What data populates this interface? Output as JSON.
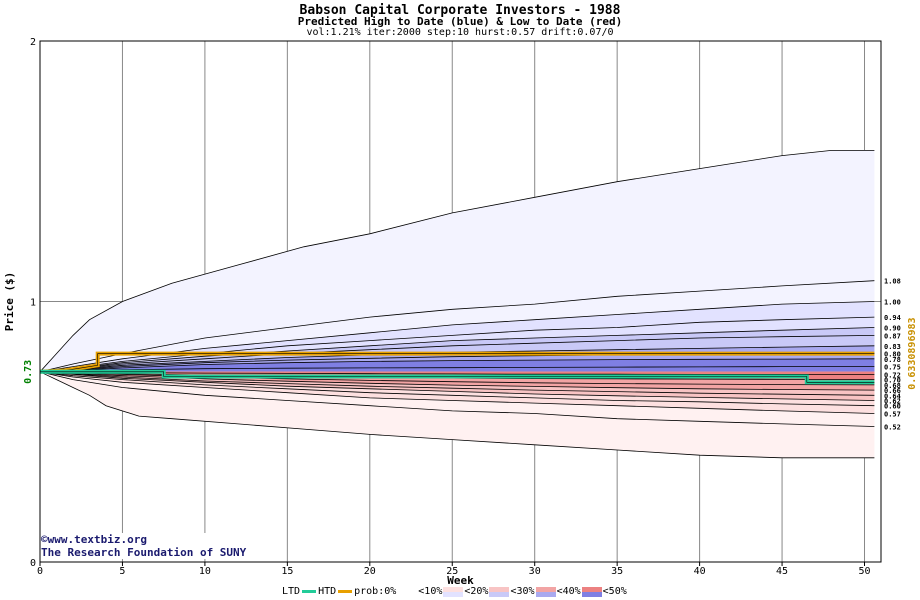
{
  "title": "Babson Capital Corporate Investors - 1988",
  "subtitle": "Predicted High to Date (blue) &  Low to Date (red)",
  "params": "vol:1.21% iter:2000 step:10 hurst:0.57 drift:0.07/0",
  "credit": {
    "site": "www.textbiz.org",
    "org": "The Research Foundation of SUNY"
  },
  "legend": {
    "ltd": "LTD",
    "htd": "HTD",
    "prob": "prob:0%",
    "bands": [
      "<10%",
      "<20%",
      "<30%",
      "<40%",
      "<50%"
    ]
  },
  "colors": {
    "ltd_line": "#22cc99",
    "htd_line": "#e8a000",
    "high_bands": [
      "#f3f3ff",
      "#e2e2ff",
      "#c9c9f7",
      "#a9a9ef",
      "#7f7fe3"
    ],
    "low_bands": [
      "#fff1f1",
      "#fde0e0",
      "#f8c4c4",
      "#f2a4a4",
      "#ec8181"
    ],
    "start_label": "#008000",
    "side_label": "#c89000"
  },
  "chart_data": {
    "type": "area",
    "xlabel": "Week",
    "ylabel": "Price ($)",
    "xlim": [
      0,
      51
    ],
    "ylim": [
      0,
      2
    ],
    "x_ticks": [
      0,
      5,
      10,
      15,
      20,
      25,
      30,
      35,
      40,
      45,
      50
    ],
    "y_ticks": [
      0,
      1,
      2
    ],
    "grid": true,
    "start_price": 0.73,
    "start_label": "0.73",
    "side_label": "0.6330896983",
    "high_bands": [
      {
        "name": "p99",
        "label": "",
        "x": [
          0,
          1,
          2,
          3,
          5,
          8,
          12,
          16,
          20,
          25,
          30,
          35,
          40,
          45,
          48,
          50.6
        ],
        "y": [
          0.73,
          0.8,
          0.87,
          0.93,
          1.0,
          1.07,
          1.14,
          1.21,
          1.26,
          1.34,
          1.4,
          1.46,
          1.51,
          1.56,
          1.58,
          1.58
        ]
      },
      {
        "name": "p90",
        "label": "1.08",
        "x": [
          0,
          2,
          5,
          10,
          15,
          20,
          25,
          30,
          35,
          40,
          45,
          50.6
        ],
        "y": [
          0.73,
          0.76,
          0.8,
          0.86,
          0.9,
          0.94,
          0.97,
          0.99,
          1.02,
          1.04,
          1.06,
          1.08
        ]
      },
      {
        "name": "p80",
        "label": "1.00",
        "x": [
          0,
          2,
          5,
          10,
          15,
          20,
          25,
          30,
          35,
          40,
          45,
          50.6
        ],
        "y": [
          0.73,
          0.75,
          0.78,
          0.82,
          0.85,
          0.88,
          0.91,
          0.93,
          0.95,
          0.97,
          0.99,
          1.0
        ]
      },
      {
        "name": "p70",
        "label": "0.94",
        "x": [
          0,
          2,
          5,
          10,
          15,
          20,
          25,
          30,
          35,
          40,
          45,
          50.6
        ],
        "y": [
          0.73,
          0.745,
          0.77,
          0.8,
          0.83,
          0.85,
          0.87,
          0.89,
          0.9,
          0.92,
          0.93,
          0.94
        ]
      },
      {
        "name": "p60",
        "label": "0.90",
        "x": [
          0,
          2,
          5,
          10,
          15,
          20,
          25,
          30,
          35,
          40,
          45,
          50.6
        ],
        "y": [
          0.73,
          0.742,
          0.765,
          0.79,
          0.81,
          0.83,
          0.85,
          0.86,
          0.87,
          0.88,
          0.89,
          0.9
        ]
      },
      {
        "name": "p55",
        "label": "0.87",
        "x": [
          0,
          2,
          5,
          10,
          15,
          20,
          25,
          30,
          35,
          40,
          45,
          50.6
        ],
        "y": [
          0.73,
          0.74,
          0.76,
          0.78,
          0.8,
          0.815,
          0.83,
          0.84,
          0.85,
          0.86,
          0.865,
          0.87
        ]
      },
      {
        "name": "p50",
        "label": "0.83",
        "x": [
          0,
          2,
          5,
          10,
          15,
          20,
          25,
          30,
          35,
          40,
          45,
          50.6
        ],
        "y": [
          0.73,
          0.738,
          0.755,
          0.77,
          0.785,
          0.795,
          0.805,
          0.81,
          0.815,
          0.82,
          0.825,
          0.83
        ]
      },
      {
        "name": "p40",
        "label": "0.80",
        "x": [
          0,
          2,
          5,
          10,
          15,
          20,
          25,
          30,
          35,
          40,
          45,
          50.6
        ],
        "y": [
          0.73,
          0.736,
          0.75,
          0.765,
          0.775,
          0.782,
          0.788,
          0.792,
          0.795,
          0.797,
          0.799,
          0.8
        ]
      },
      {
        "name": "p30",
        "label": "0.78",
        "x": [
          0,
          2,
          5,
          10,
          15,
          20,
          25,
          30,
          35,
          40,
          45,
          50.6
        ],
        "y": [
          0.73,
          0.734,
          0.745,
          0.758,
          0.765,
          0.77,
          0.773,
          0.775,
          0.777,
          0.778,
          0.779,
          0.78
        ]
      },
      {
        "name": "p20",
        "label": "0.75",
        "x": [
          0,
          2,
          5,
          10,
          15,
          20,
          25,
          30,
          35,
          40,
          45,
          50.6
        ],
        "y": [
          0.73,
          0.732,
          0.738,
          0.742,
          0.744,
          0.745,
          0.746,
          0.747,
          0.748,
          0.749,
          0.75,
          0.75
        ]
      }
    ],
    "low_bands": [
      {
        "name": "q99",
        "label": "",
        "x": [
          0,
          1,
          2,
          3,
          4,
          6,
          8,
          12,
          16,
          20,
          25,
          30,
          35,
          40,
          45,
          50.6
        ],
        "y": [
          0.73,
          0.7,
          0.67,
          0.64,
          0.6,
          0.56,
          0.55,
          0.53,
          0.51,
          0.49,
          0.47,
          0.45,
          0.43,
          0.41,
          0.4,
          0.4
        ]
      },
      {
        "name": "q90",
        "label": "0.52",
        "x": [
          0,
          2,
          5,
          10,
          15,
          20,
          25,
          30,
          35,
          40,
          45,
          50.6
        ],
        "y": [
          0.73,
          0.7,
          0.67,
          0.64,
          0.62,
          0.6,
          0.58,
          0.57,
          0.55,
          0.54,
          0.53,
          0.52
        ]
      },
      {
        "name": "q80",
        "label": "0.57",
        "x": [
          0,
          2,
          5,
          10,
          15,
          20,
          25,
          30,
          35,
          40,
          45,
          50.6
        ],
        "y": [
          0.73,
          0.71,
          0.69,
          0.67,
          0.65,
          0.63,
          0.62,
          0.61,
          0.6,
          0.59,
          0.58,
          0.57
        ]
      },
      {
        "name": "q70",
        "label": "0.60",
        "x": [
          0,
          2,
          5,
          10,
          15,
          20,
          25,
          30,
          35,
          40,
          45,
          50.6
        ],
        "y": [
          0.73,
          0.715,
          0.7,
          0.68,
          0.665,
          0.65,
          0.64,
          0.63,
          0.62,
          0.615,
          0.607,
          0.6
        ]
      },
      {
        "name": "q60",
        "label": "0.62",
        "x": [
          0,
          2,
          5,
          10,
          15,
          20,
          25,
          30,
          35,
          40,
          45,
          50.6
        ],
        "y": [
          0.73,
          0.72,
          0.705,
          0.69,
          0.675,
          0.665,
          0.655,
          0.645,
          0.638,
          0.632,
          0.626,
          0.62
        ]
      },
      {
        "name": "q55",
        "label": "0.64",
        "x": [
          0,
          2,
          5,
          10,
          15,
          20,
          25,
          30,
          35,
          40,
          45,
          50.6
        ],
        "y": [
          0.73,
          0.722,
          0.71,
          0.695,
          0.685,
          0.675,
          0.667,
          0.66,
          0.654,
          0.648,
          0.644,
          0.64
        ]
      },
      {
        "name": "q50",
        "label": "0.66",
        "x": [
          0,
          2,
          5,
          10,
          15,
          20,
          25,
          30,
          35,
          40,
          45,
          50.6
        ],
        "y": [
          0.73,
          0.724,
          0.715,
          0.703,
          0.694,
          0.686,
          0.679,
          0.674,
          0.669,
          0.665,
          0.662,
          0.66
        ]
      },
      {
        "name": "q40",
        "label": "0.68",
        "x": [
          0,
          2,
          5,
          10,
          15,
          20,
          25,
          30,
          35,
          40,
          45,
          50.6
        ],
        "y": [
          0.73,
          0.726,
          0.72,
          0.71,
          0.703,
          0.697,
          0.692,
          0.688,
          0.685,
          0.683,
          0.681,
          0.68
        ]
      },
      {
        "name": "q30",
        "label": "0.70",
        "x": [
          0,
          2,
          5,
          10,
          15,
          20,
          25,
          30,
          35,
          40,
          45,
          50.6
        ],
        "y": [
          0.73,
          0.728,
          0.723,
          0.717,
          0.712,
          0.709,
          0.706,
          0.704,
          0.703,
          0.702,
          0.701,
          0.7
        ]
      },
      {
        "name": "q20",
        "label": "0.72",
        "x": [
          0,
          2,
          5,
          10,
          15,
          20,
          25,
          30,
          35,
          40,
          45,
          50.6
        ],
        "y": [
          0.73,
          0.729,
          0.727,
          0.725,
          0.724,
          0.723,
          0.722,
          0.721,
          0.721,
          0.72,
          0.72,
          0.72
        ]
      }
    ],
    "htd_path": {
      "x": [
        0,
        1.5,
        2.5,
        3.5,
        3.5,
        50.6
      ],
      "y": [
        0.73,
        0.735,
        0.745,
        0.755,
        0.8,
        0.8
      ]
    },
    "ltd_path": {
      "x": [
        0,
        7.5,
        7.5,
        46.5,
        46.5,
        50.6
      ],
      "y": [
        0.73,
        0.73,
        0.712,
        0.712,
        0.69,
        0.69
      ]
    }
  }
}
